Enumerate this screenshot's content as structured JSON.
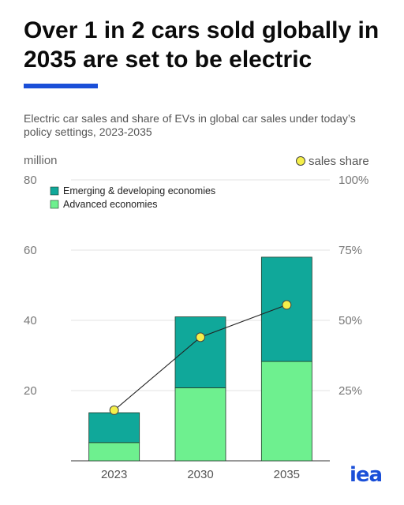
{
  "header": {
    "title": "Over 1 in 2 cars sold globally in 2035 are set to be electric",
    "subtitle": "Electric car sales and share of EVs in global car sales under today’s policy settings, 2023-2035"
  },
  "logo_text": "iea",
  "colors": {
    "emerging": "#10a89a",
    "advanced": "#6ef08f",
    "marker": "#f5ef4a",
    "accent": "#1a4fd8"
  },
  "chart_data": {
    "type": "bar",
    "stacked": true,
    "categories": [
      "2023",
      "2030",
      "2035"
    ],
    "series": [
      {
        "name": "Advanced economies",
        "values": [
          5.2,
          20.8,
          28.3
        ]
      },
      {
        "name": "Emerging & developing economies",
        "values": [
          8.5,
          20.2,
          29.7
        ]
      }
    ],
    "line_series": {
      "name": "sales share",
      "values": [
        18,
        44,
        55.5
      ]
    },
    "ylabel": "million",
    "ylim": [
      0,
      80
    ],
    "yticks": [
      "20",
      "40",
      "60",
      "80"
    ],
    "y2lim": [
      0,
      100
    ],
    "y2ticks": [
      "25%",
      "50%",
      "75%",
      "100%"
    ],
    "grid": true,
    "legend": "top-left"
  }
}
